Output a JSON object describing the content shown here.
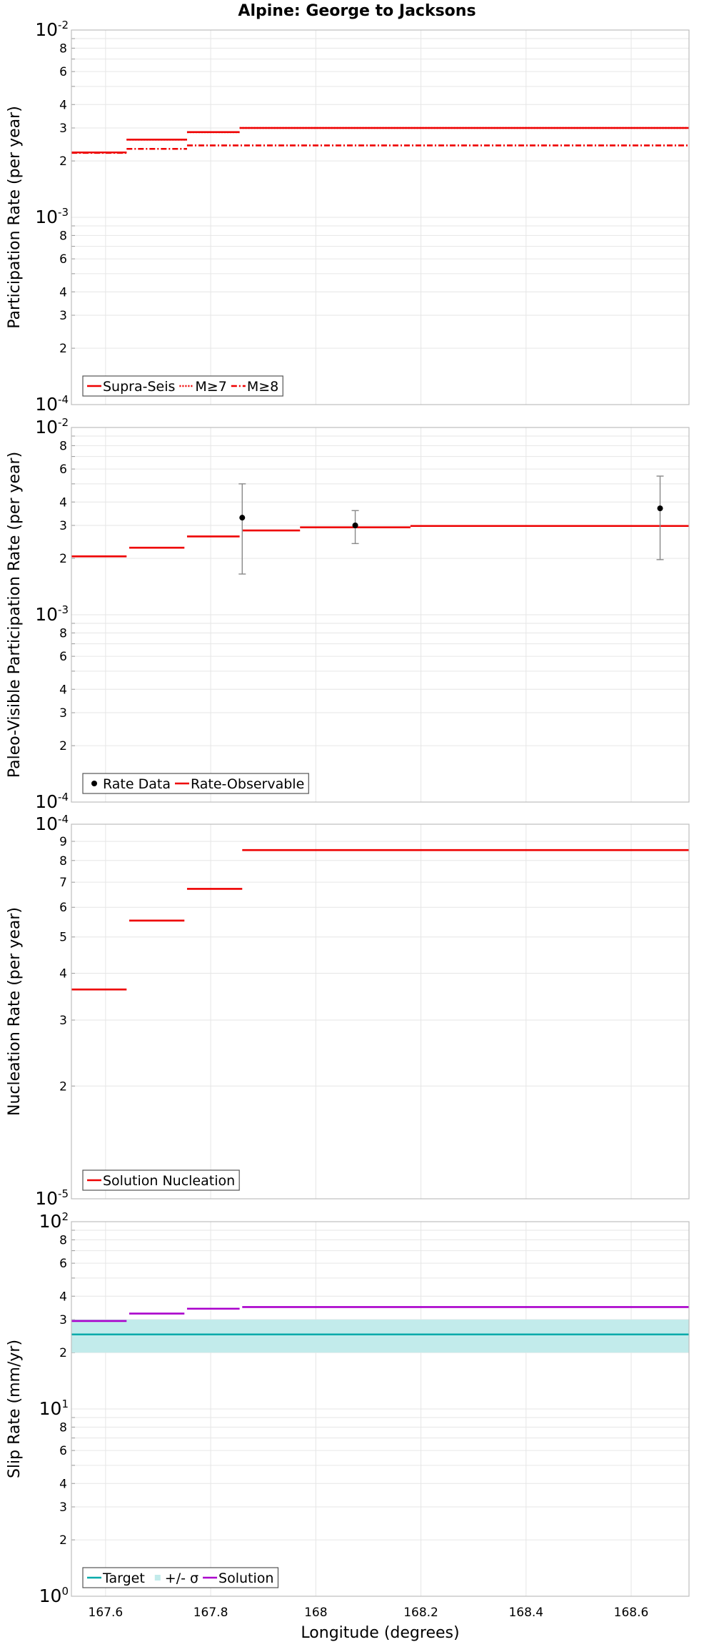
{
  "chart_data": {
    "type": "line",
    "title": "Alpine: George to Jacksons",
    "xlabel": "Longitude (degrees)",
    "xlim": [
      167.535,
      168.71
    ],
    "xticks": [
      "167.6",
      "167.8",
      "168",
      "168.2",
      "168.4",
      "168.6"
    ],
    "colors": {
      "red": "#ee0000",
      "teal": "#00aaaa",
      "teal_band": "#c2ebeb",
      "magenta": "#aa00cc",
      "grid": "#e6e6e6",
      "error_bar": "#888888"
    },
    "panels": [
      {
        "ylabel": "Participation Rate (per year)",
        "scale": "log",
        "ylim": [
          0.0001,
          0.01
        ],
        "decade_labels": [
          "10-4",
          "10-3",
          "10-2"
        ],
        "legend": [
          "Supra-Seis",
          "M≥7",
          "M≥8"
        ],
        "series": [
          {
            "name": "Supra-Seis",
            "style": "solid",
            "color": "#ee0000",
            "steps": [
              {
                "x0": 167.535,
                "x1": 167.64,
                "y": 0.00222
              },
              {
                "x0": 167.64,
                "x1": 167.755,
                "y": 0.0026
              },
              {
                "x0": 167.755,
                "x1": 167.855,
                "y": 0.00285
              },
              {
                "x0": 167.855,
                "x1": 168.71,
                "y": 0.003
              }
            ]
          },
          {
            "name": "M≥7",
            "style": "dotted",
            "color": "#ee0000",
            "steps": [
              {
                "x0": 167.535,
                "x1": 167.64,
                "y": 0.00222
              },
              {
                "x0": 167.64,
                "x1": 167.755,
                "y": 0.0026
              },
              {
                "x0": 167.755,
                "x1": 167.855,
                "y": 0.00285
              },
              {
                "x0": 167.855,
                "x1": 168.71,
                "y": 0.003
              }
            ]
          },
          {
            "name": "M≥8",
            "style": "dashdot",
            "color": "#ee0000",
            "steps": [
              {
                "x0": 167.535,
                "x1": 167.64,
                "y": 0.00221
              },
              {
                "x0": 167.64,
                "x1": 167.755,
                "y": 0.00232
              },
              {
                "x0": 167.755,
                "x1": 168.71,
                "y": 0.00242
              }
            ]
          }
        ]
      },
      {
        "ylabel": "Paleo-Visible Participation Rate (per year)",
        "scale": "log",
        "ylim": [
          0.0001,
          0.01
        ],
        "decade_labels": [
          "10-4",
          "10-3",
          "10-2"
        ],
        "legend": [
          "Rate Data",
          "Rate-Observable"
        ],
        "series": [
          {
            "name": "Rate-Observable",
            "style": "solid",
            "color": "#ee0000",
            "steps": [
              {
                "x0": 167.535,
                "x1": 167.64,
                "y": 0.00205
              },
              {
                "x0": 167.645,
                "x1": 167.75,
                "y": 0.00228
              },
              {
                "x0": 167.755,
                "x1": 167.855,
                "y": 0.00262
              },
              {
                "x0": 167.86,
                "x1": 167.97,
                "y": 0.00282
              },
              {
                "x0": 167.97,
                "x1": 168.18,
                "y": 0.00293
              },
              {
                "x0": 168.18,
                "x1": 168.71,
                "y": 0.00298
              }
            ]
          }
        ],
        "points": {
          "name": "Rate Data",
          "data": [
            {
              "x": 167.86,
              "y": 0.0033,
              "lo": 0.00165,
              "hi": 0.005
            },
            {
              "x": 168.075,
              "y": 0.003,
              "lo": 0.0024,
              "hi": 0.0036
            },
            {
              "x": 168.655,
              "y": 0.0037,
              "lo": 0.00197,
              "hi": 0.0055
            }
          ]
        }
      },
      {
        "ylabel": "Nucleation Rate (per year)",
        "scale": "log",
        "ylim": [
          1e-05,
          0.0001
        ],
        "decade_labels": [
          "10-5",
          "10-4"
        ],
        "legend": [
          "Solution Nucleation"
        ],
        "series": [
          {
            "name": "Solution Nucleation",
            "style": "solid",
            "color": "#ee0000",
            "steps": [
              {
                "x0": 167.535,
                "x1": 167.64,
                "y": 3.62e-05
              },
              {
                "x0": 167.645,
                "x1": 167.75,
                "y": 5.53e-05
              },
              {
                "x0": 167.755,
                "x1": 167.86,
                "y": 6.72e-05
              },
              {
                "x0": 167.86,
                "x1": 168.71,
                "y": 8.53e-05
              }
            ]
          }
        ]
      },
      {
        "ylabel": "Slip Rate (mm/yr)",
        "scale": "log",
        "ylim": [
          1,
          100
        ],
        "decade_labels": [
          "100",
          "101",
          "102"
        ],
        "legend": [
          "Target",
          "+/- σ",
          "Solution"
        ],
        "band": {
          "name": "+/- σ",
          "lo": 20,
          "hi": 30,
          "color": "#c2ebeb"
        },
        "series": [
          {
            "name": "Target",
            "style": "solid",
            "color": "#00aaaa",
            "steps": [
              {
                "x0": 167.535,
                "x1": 168.71,
                "y": 25
              }
            ]
          },
          {
            "name": "Solution",
            "style": "solid",
            "color": "#aa00cc",
            "steps": [
              {
                "x0": 167.535,
                "x1": 167.64,
                "y": 29.5
              },
              {
                "x0": 167.645,
                "x1": 167.75,
                "y": 32.3
              },
              {
                "x0": 167.755,
                "x1": 167.855,
                "y": 34.3
              },
              {
                "x0": 167.86,
                "x1": 168.71,
                "y": 35.0
              }
            ]
          }
        ]
      }
    ]
  }
}
